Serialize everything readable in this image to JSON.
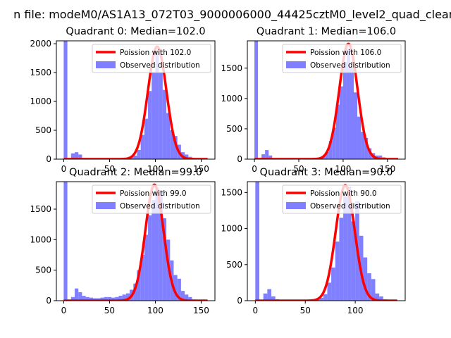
{
  "figure": {
    "suptitle": "n file: modeM0/AS1A13_072T03_9000006000_44425cztM0_level2_quad_clean"
  },
  "chart_data": [
    {
      "type": "bar",
      "title": "Quadrant 0: Median=102.0",
      "xlim": [
        -8,
        165
      ],
      "ylim": [
        0,
        2050
      ],
      "xticks": [
        0,
        50,
        100,
        150
      ],
      "yticks": [
        0,
        500,
        1000,
        1500,
        2000
      ],
      "grid": false,
      "legend_position": "upper-right",
      "legend": [
        "Poission with 102.0",
        "Observed distribution"
      ],
      "colors": {
        "poisson": "#ff0000",
        "observed": "#7f7fff"
      },
      "poisson_mean": 102.0,
      "poisson_peak": 1950,
      "poisson_sigma": 10.1,
      "bin_width": 4,
      "bin_starts": [
        0,
        4,
        8,
        12,
        16,
        20,
        24,
        28,
        32,
        36,
        40,
        44,
        48,
        52,
        56,
        60,
        64,
        68,
        72,
        76,
        80,
        84,
        88,
        92,
        96,
        100,
        104,
        108,
        112,
        116,
        120,
        124,
        128,
        132,
        136,
        140,
        144,
        148,
        152,
        156
      ],
      "counts": [
        2050,
        0,
        100,
        120,
        80,
        20,
        10,
        8,
        5,
        4,
        4,
        3,
        3,
        4,
        5,
        6,
        8,
        10,
        30,
        60,
        160,
        420,
        700,
        1180,
        1500,
        1870,
        1500,
        1200,
        800,
        500,
        400,
        250,
        120,
        80,
        40,
        20,
        8,
        4,
        2,
        0
      ]
    },
    {
      "type": "bar",
      "title": "Quadrant 1: Median=106.0",
      "xlim": [
        -8,
        170
      ],
      "ylim": [
        0,
        1950
      ],
      "xticks": [
        0,
        50,
        100,
        150
      ],
      "yticks": [
        0,
        500,
        1000,
        1500
      ],
      "grid": false,
      "legend_position": "upper-right",
      "legend": [
        "Poission with 106.0",
        "Observed distribution"
      ],
      "colors": {
        "poisson": "#ff0000",
        "observed": "#7f7fff"
      },
      "poisson_mean": 106.0,
      "poisson_peak": 1900,
      "poisson_sigma": 10.3,
      "bin_width": 4,
      "bin_starts": [
        0,
        4,
        8,
        12,
        16,
        20,
        24,
        28,
        32,
        36,
        40,
        44,
        48,
        52,
        56,
        60,
        64,
        68,
        72,
        76,
        80,
        84,
        88,
        92,
        96,
        100,
        104,
        108,
        112,
        116,
        120,
        124,
        128,
        132,
        136,
        140,
        144,
        148,
        152,
        156,
        160
      ],
      "counts": [
        1950,
        0,
        80,
        150,
        60,
        10,
        6,
        4,
        3,
        3,
        3,
        3,
        4,
        4,
        5,
        6,
        8,
        10,
        20,
        40,
        120,
        300,
        520,
        900,
        1200,
        1600,
        1820,
        1500,
        1100,
        700,
        450,
        350,
        180,
        100,
        60,
        60,
        30,
        10,
        4,
        2,
        0
      ]
    },
    {
      "type": "bar",
      "title": "Quadrant 2: Median=99.0",
      "xlim": [
        -8,
        165
      ],
      "ylim": [
        0,
        1950
      ],
      "xticks": [
        0,
        50,
        100,
        150
      ],
      "yticks": [
        0,
        500,
        1000,
        1500
      ],
      "grid": false,
      "legend_position": "upper-right",
      "legend": [
        "Poission with 99.0",
        "Observed distribution"
      ],
      "colors": {
        "poisson": "#ff0000",
        "observed": "#7f7fff"
      },
      "poisson_mean": 99.0,
      "poisson_peak": 1900,
      "poisson_sigma": 9.9,
      "bin_width": 4,
      "bin_starts": [
        0,
        4,
        8,
        12,
        16,
        20,
        24,
        28,
        32,
        36,
        40,
        44,
        48,
        52,
        56,
        60,
        64,
        68,
        72,
        76,
        80,
        84,
        88,
        92,
        96,
        100,
        104,
        108,
        112,
        116,
        120,
        124,
        128,
        132,
        136,
        140,
        144,
        148,
        152,
        156
      ],
      "counts": [
        1950,
        0,
        60,
        200,
        140,
        80,
        60,
        50,
        40,
        40,
        50,
        60,
        60,
        50,
        60,
        80,
        100,
        120,
        180,
        280,
        500,
        750,
        1080,
        1400,
        1650,
        1850,
        1800,
        1350,
        1000,
        660,
        420,
        360,
        160,
        100,
        60,
        20,
        10,
        4,
        2,
        0
      ]
    },
    {
      "type": "bar",
      "title": "Quadrant 3: Median=90.0",
      "xlim": [
        -8,
        150
      ],
      "ylim": [
        0,
        1650
      ],
      "xticks": [
        0,
        50,
        100
      ],
      "yticks": [
        0,
        500,
        1000,
        1500
      ],
      "grid": false,
      "legend_position": "upper-right",
      "legend": [
        "Poission with 90.0",
        "Observed distribution"
      ],
      "colors": {
        "poisson": "#ff0000",
        "observed": "#7f7fff"
      },
      "poisson_mean": 90.0,
      "poisson_peak": 1600,
      "poisson_sigma": 9.5,
      "bin_width": 4,
      "bin_starts": [
        0,
        4,
        8,
        12,
        16,
        20,
        24,
        28,
        32,
        36,
        40,
        44,
        48,
        52,
        56,
        60,
        64,
        68,
        72,
        76,
        80,
        84,
        88,
        92,
        96,
        100,
        104,
        108,
        112,
        116,
        120,
        124,
        128,
        132,
        136,
        140
      ],
      "counts": [
        1650,
        0,
        100,
        160,
        60,
        20,
        10,
        8,
        5,
        4,
        4,
        4,
        5,
        6,
        10,
        20,
        40,
        90,
        250,
        460,
        820,
        1150,
        1450,
        1580,
        1100,
        1380,
        900,
        600,
        380,
        300,
        100,
        60,
        20,
        6,
        2,
        0
      ]
    }
  ]
}
